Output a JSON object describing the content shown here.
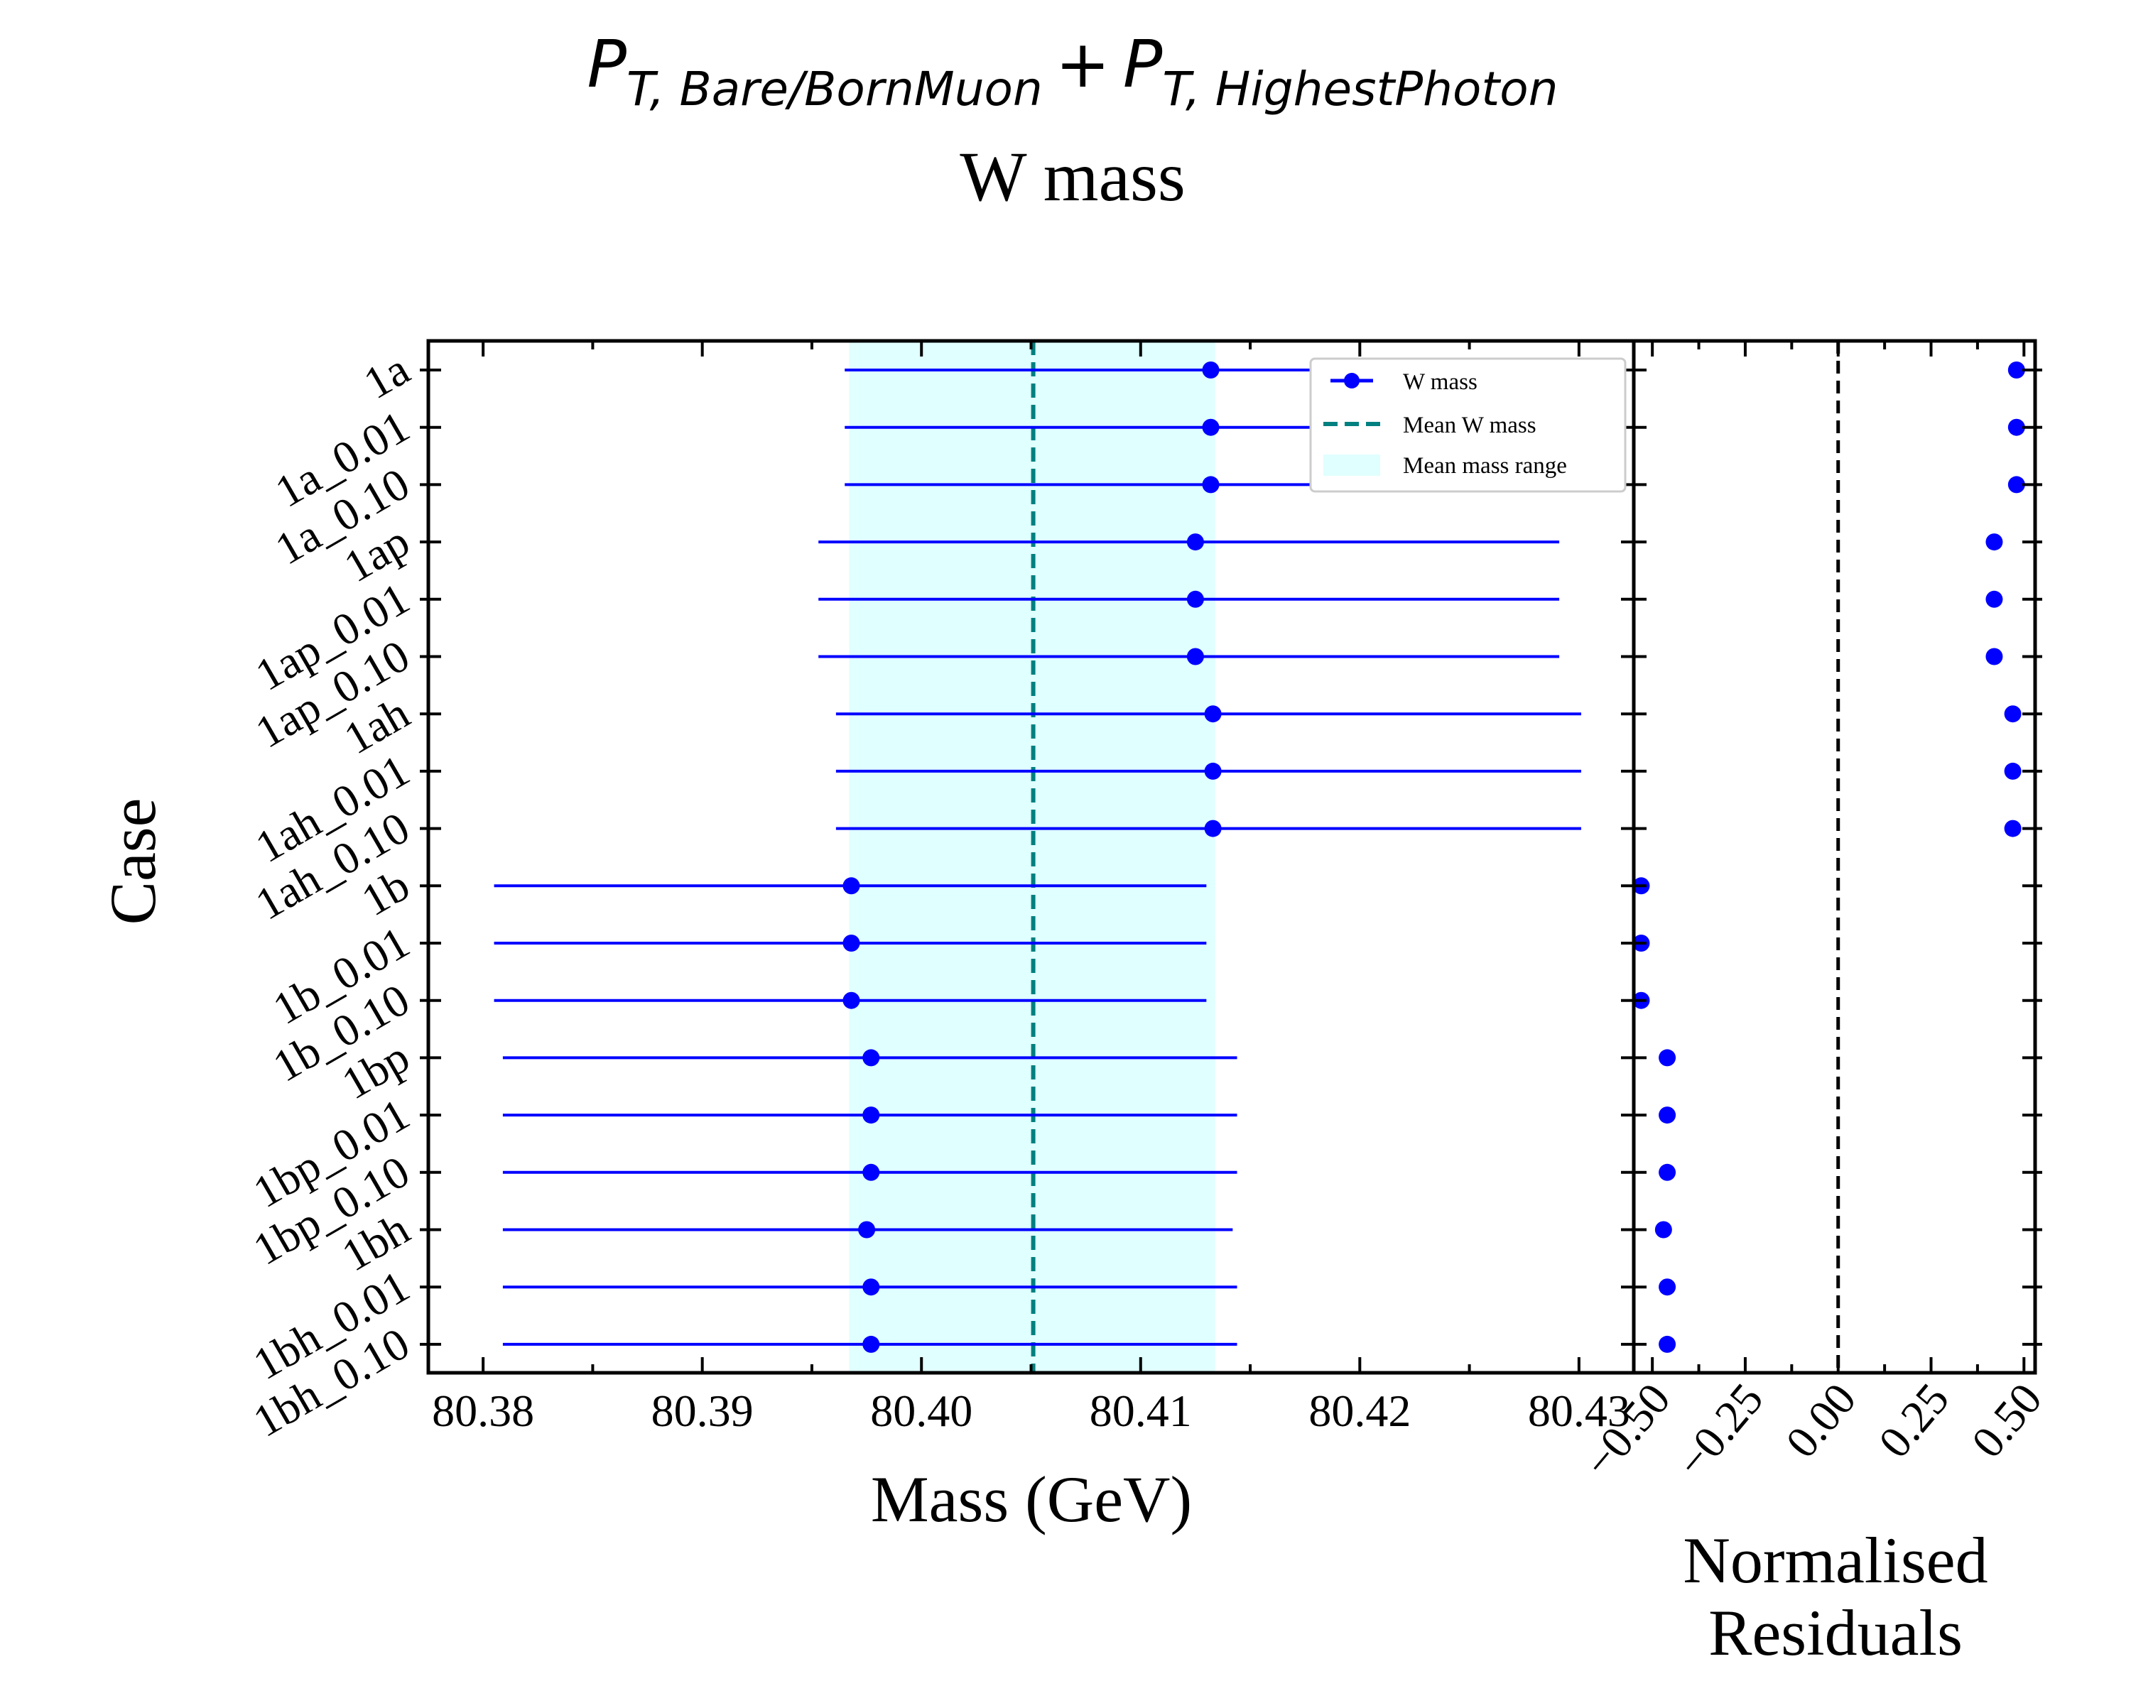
{
  "chart_data": [
    {
      "type": "scatter",
      "panel": "main",
      "title_line1_main": "P",
      "title_line1_sub1": "T, Bare/BornMuon",
      "title_line1_plus": "+",
      "title_line1_main2": "P",
      "title_line1_sub2": "T, HighestPhoton",
      "title_line2": "W mass",
      "xlabel": "Mass (GeV)",
      "ylabel": "Case",
      "xlim": [
        80.3775,
        80.4325
      ],
      "xticks": [
        80.38,
        80.39,
        80.4,
        80.41,
        80.42,
        80.43
      ],
      "xtick_labels": [
        "80.38",
        "80.39",
        "80.40",
        "80.41",
        "80.42",
        "80.43"
      ],
      "categories": [
        "1a",
        "1a_0.01",
        "1a_0.10",
        "1ap",
        "1ap_0.01",
        "1ap_0.10",
        "1ah",
        "1ah_0.01",
        "1ah_0.10",
        "1b",
        "1b_0.01",
        "1b_0.10",
        "1bp",
        "1bp_0.01",
        "1bp_0.10",
        "1bh",
        "1bh_0.01",
        "1bh_0.10"
      ],
      "series": [
        {
          "name": "W mass",
          "color": "#0000ff",
          "values": [
            80.4132,
            80.4132,
            80.4132,
            80.4125,
            80.4125,
            80.4125,
            80.4133,
            80.4133,
            80.4133,
            80.3968,
            80.3968,
            80.3968,
            80.3977,
            80.3977,
            80.3977,
            80.3975,
            80.3977,
            80.3977
          ],
          "err_low": [
            80.3965,
            80.3965,
            80.3965,
            80.3953,
            80.3953,
            80.3953,
            80.3961,
            80.3961,
            80.3961,
            80.3805,
            80.3805,
            80.3805,
            80.3809,
            80.3809,
            80.3809,
            80.3809,
            80.3809,
            80.3809
          ],
          "err_high": [
            80.4291,
            80.4291,
            80.4291,
            80.4291,
            80.4291,
            80.4291,
            80.4301,
            80.4301,
            80.4301,
            80.413,
            80.413,
            80.413,
            80.4144,
            80.4144,
            80.4144,
            80.4142,
            80.4144,
            80.4144
          ]
        }
      ],
      "mean_line": {
        "name": "Mean W mass",
        "value": 80.4051,
        "color": "#008080"
      },
      "mean_range": {
        "name": "Mean mass range",
        "low": 80.3967,
        "high": 80.4134,
        "color": "#e0ffff"
      },
      "legend": {
        "position": "top-right",
        "entries": [
          "W mass",
          "Mean W mass",
          "Mean mass range"
        ]
      }
    },
    {
      "type": "scatter",
      "panel": "residuals",
      "xlabel_line1": "Normalised",
      "xlabel_line2": "Residuals",
      "xlim": [
        -0.55,
        0.53
      ],
      "xticks": [
        -0.5,
        -0.25,
        0.0,
        0.25,
        0.5
      ],
      "xtick_labels": [
        "−0.50",
        "−0.25",
        "0.00",
        "0.25",
        "0.50"
      ],
      "zero_line": 0.0,
      "series": [
        {
          "name": "Normalised Residuals",
          "color": "#0000ff",
          "values": [
            0.48,
            0.48,
            0.48,
            0.42,
            0.42,
            0.42,
            0.47,
            0.47,
            0.47,
            -0.53,
            -0.53,
            -0.53,
            -0.46,
            -0.46,
            -0.46,
            -0.47,
            -0.46,
            -0.46
          ]
        }
      ]
    }
  ]
}
